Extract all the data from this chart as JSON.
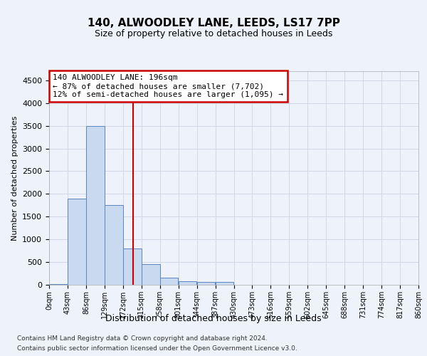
{
  "title": "140, ALWOODLEY LANE, LEEDS, LS17 7PP",
  "subtitle": "Size of property relative to detached houses in Leeds",
  "xlabel": "Distribution of detached houses by size in Leeds",
  "ylabel": "Number of detached properties",
  "footer_line1": "Contains HM Land Registry data © Crown copyright and database right 2024.",
  "footer_line2": "Contains public sector information licensed under the Open Government Licence v3.0.",
  "property_label": "140 ALWOODLEY LANE: 196sqm",
  "annotation_line1": "← 87% of detached houses are smaller (7,702)",
  "annotation_line2": "12% of semi-detached houses are larger (1,095) →",
  "property_size_sqm": 196,
  "bin_edges": [
    0,
    43,
    86,
    129,
    172,
    215,
    258,
    301,
    344,
    387,
    430,
    473,
    516,
    559,
    602,
    645,
    688,
    731,
    774,
    817,
    860
  ],
  "bar_heights": [
    10,
    1900,
    3500,
    1750,
    800,
    450,
    150,
    80,
    65,
    55,
    0,
    0,
    0,
    0,
    0,
    0,
    0,
    0,
    0,
    0
  ],
  "bar_color": "#c9d9f0",
  "bar_edge_color": "#5a85c0",
  "vline_color": "#cc0000",
  "annotation_box_color": "#cc0000",
  "grid_color": "#d0d8e8",
  "ylim": [
    0,
    4700
  ],
  "yticks": [
    0,
    500,
    1000,
    1500,
    2000,
    2500,
    3000,
    3500,
    4000,
    4500
  ],
  "background_color": "#eef2fb",
  "title_fontsize": 11,
  "subtitle_fontsize": 9,
  "ylabel_fontsize": 8,
  "xlabel_fontsize": 9,
  "tick_fontsize": 8,
  "xtick_fontsize": 7,
  "annotation_fontsize": 8,
  "footer_fontsize": 6.5
}
